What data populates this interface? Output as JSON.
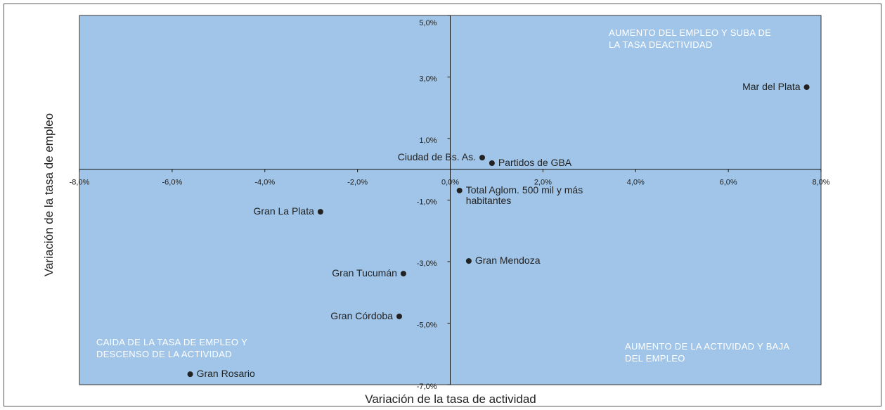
{
  "chart_data": {
    "type": "scatter",
    "x_label": "Variación de la tasa de actividad",
    "y_label": "Variación de la tasa de empleo",
    "xlim": [
      -8,
      8
    ],
    "ylim": [
      -7,
      5
    ],
    "xticks": [
      {
        "value": -8,
        "label": "-8,0%"
      },
      {
        "value": -6,
        "label": "-6,0%"
      },
      {
        "value": -4,
        "label": "-4,0%"
      },
      {
        "value": -2,
        "label": "-2,0%"
      },
      {
        "value": 0,
        "label": "0,0%"
      },
      {
        "value": 2,
        "label": "2,0%"
      },
      {
        "value": 4,
        "label": "4,0%"
      },
      {
        "value": 6,
        "label": "6,0%"
      },
      {
        "value": 8,
        "label": "8,0%"
      }
    ],
    "yticks": [
      {
        "value": 5,
        "label": "5,0%"
      },
      {
        "value": 3,
        "label": "3,0%"
      },
      {
        "value": 1,
        "label": "1,0%"
      },
      {
        "value": -1,
        "label": "-1,0%"
      },
      {
        "value": -3,
        "label": "-3,0%"
      },
      {
        "value": -5,
        "label": "-5,0%"
      },
      {
        "value": -7,
        "label": "-7,0%"
      }
    ],
    "background": "#a0c5e8",
    "color": "#222222",
    "series": [
      {
        "names": [
          "Mar del Plata",
          "Ciudad de Bs. As.",
          "Partidos de GBA",
          "Total Aglom. 500 mil y más habitantes",
          "Gran La Plata",
          "Gran Mendoza",
          "Gran Tucumán",
          "Gran Córdoba",
          "Gran Rosario"
        ],
        "x": [
          7.69,
          0.69,
          0.9,
          0.2,
          -2.8,
          0.4,
          -1.01,
          -1.1,
          -5.61
        ],
        "values": [
          2.67,
          0.38,
          0.2,
          -0.69,
          -1.38,
          -2.98,
          -3.39,
          -4.78,
          -6.66
        ]
      }
    ],
    "annotations": [
      "AUMENTO DEL EMPLEO Y SUBA DE LA TASA DEACTIVIDAD",
      "CAIDA DE LA TASA DE EMPLEO Y DESCENSO DE LA  ACTIVIDAD",
      "AUMENTO DE LA ACTIVIDAD Y BAJA DEL EMPLEO"
    ]
  }
}
